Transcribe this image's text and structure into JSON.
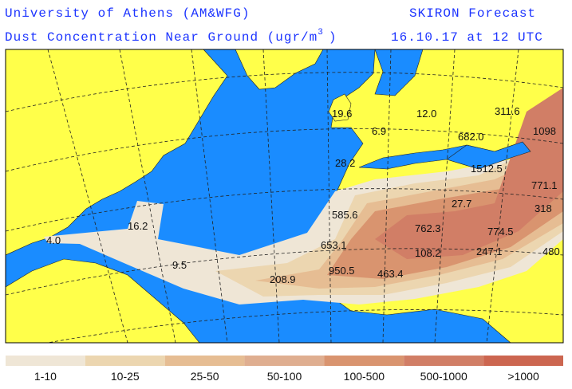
{
  "header": {
    "institution": "University of Athens (AM&WFG)",
    "product": "SKIRON Forecast",
    "variable": "Dust Concentration Near Ground (ugr/m",
    "unit_exponent": "3",
    "variable_close": ")",
    "valid_time": "16.10.17 at 12 UTC"
  },
  "map": {
    "labels": [
      "4.0",
      "16.2",
      "9.5",
      "208.9",
      "950.5",
      "463.4",
      "653.1",
      "585.6",
      "762.3",
      "108.2",
      "247.1",
      "774.5",
      "27.7",
      "1512.5",
      "682.0",
      "12.0",
      "6.9",
      "19.6",
      "28.2",
      "311.6",
      "1098",
      "771.1",
      "318",
      "480"
    ]
  },
  "legend": {
    "items": [
      {
        "label": "1-10",
        "color": "#efe6d6"
      },
      {
        "label": "10-25",
        "color": "#ecd6b0"
      },
      {
        "label": "25-50",
        "color": "#e6bd93"
      },
      {
        "label": "50-100",
        "color": "#dfae90"
      },
      {
        "label": "100-500",
        "color": "#d9946f"
      },
      {
        "label": "500-1000",
        "color": "#d17e66"
      },
      {
        "label": ">1000",
        "color": "#cc6650"
      }
    ]
  }
}
